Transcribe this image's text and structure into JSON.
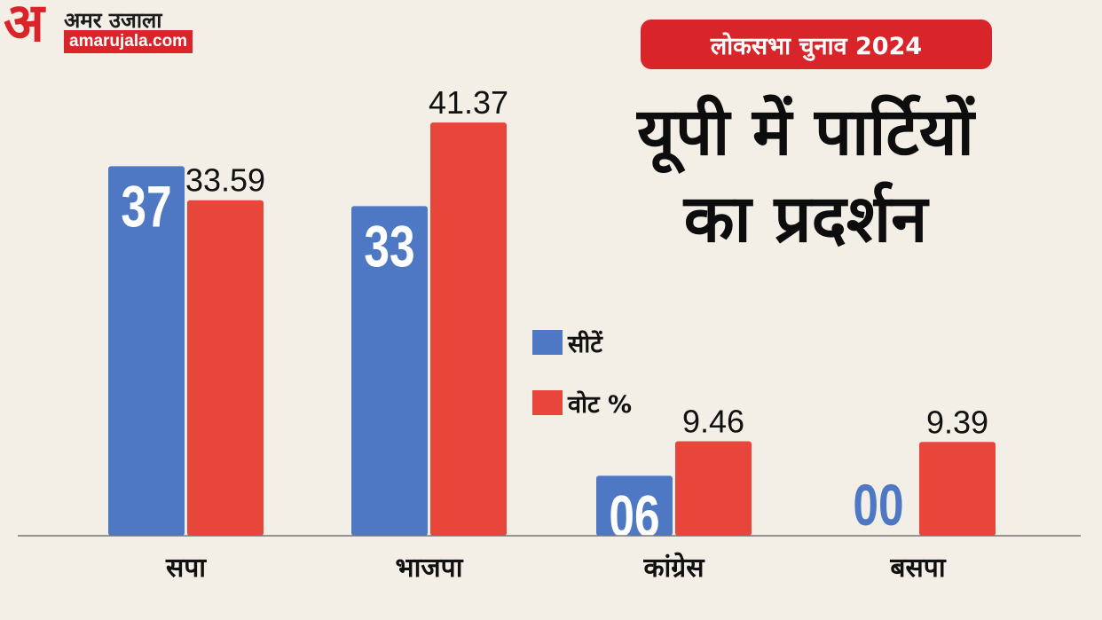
{
  "brand": {
    "mark": "अ",
    "name_hi": "अमर उजाला",
    "name_en": "amarujala.com",
    "color": "#d9242a"
  },
  "badge": {
    "label": "लोकसभा चुनाव 2024"
  },
  "title": {
    "line1": "यूपी में पार्टियों",
    "line2": "का प्रदर्शन"
  },
  "legend": {
    "placement": "right",
    "items": [
      {
        "label": "सीटें",
        "color": "#4e78c3"
      },
      {
        "label": "वोट %",
        "color": "#e8463a"
      }
    ]
  },
  "chart_data": {
    "type": "bar",
    "categories": [
      "सपा",
      "भाजपा",
      "कांग्रेस",
      "बसपा"
    ],
    "series": [
      {
        "name": "सीटें",
        "values": [
          37,
          33,
          6,
          0
        ],
        "labels": [
          "37",
          "33",
          "06",
          "00"
        ],
        "color": "#4e78c3"
      },
      {
        "name": "वोट %",
        "values": [
          33.59,
          41.37,
          9.46,
          9.39
        ],
        "labels": [
          "33.59",
          "41.37",
          "9.46",
          "9.39"
        ],
        "color": "#e8463a"
      }
    ],
    "ylim": [
      0,
      46
    ],
    "grid": false
  }
}
